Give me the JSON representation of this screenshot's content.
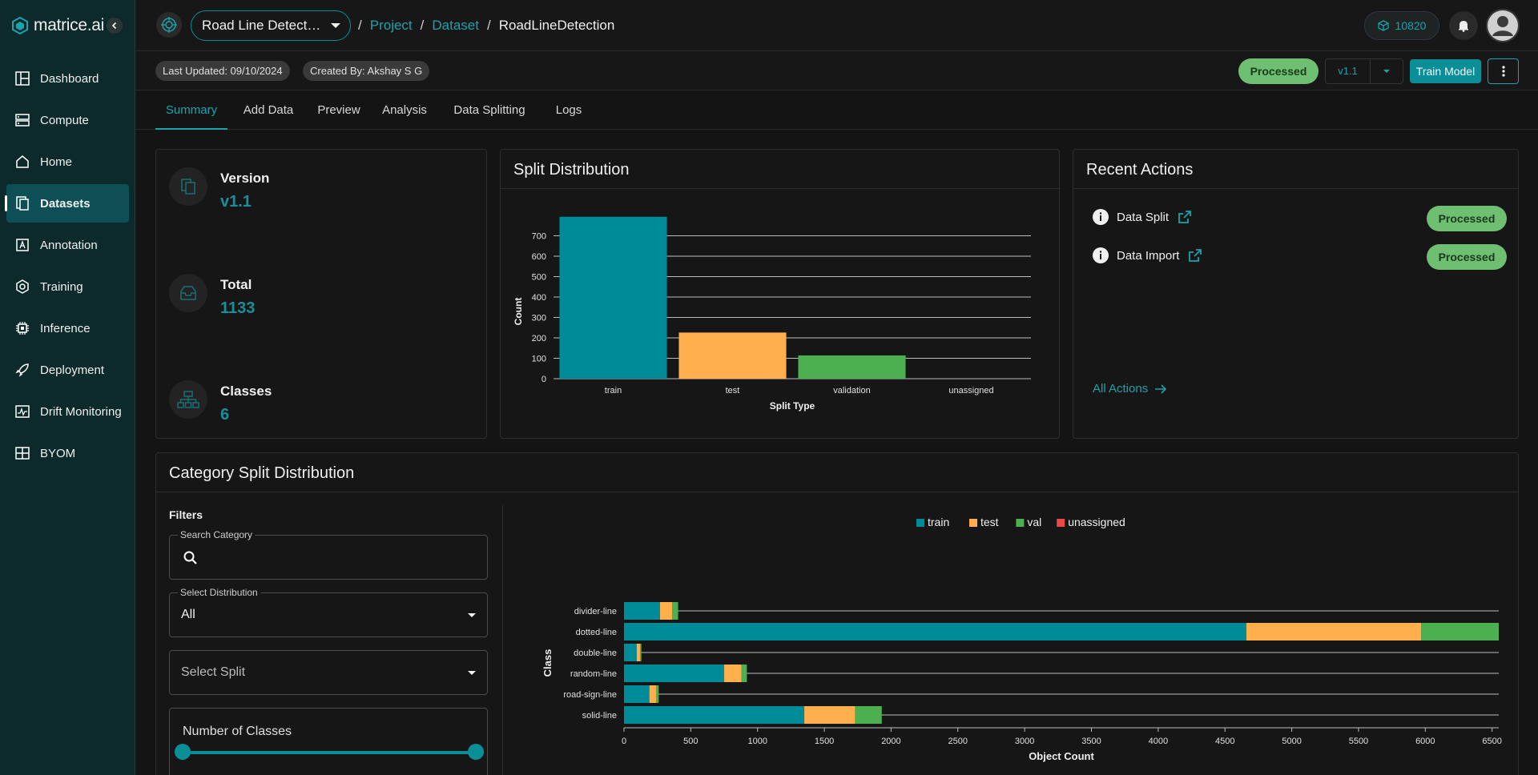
{
  "brand": {
    "name": "matrice.ai"
  },
  "sidebar": {
    "items": [
      {
        "label": "Dashboard",
        "icon": "dashboard-icon"
      },
      {
        "label": "Compute",
        "icon": "server-icon"
      },
      {
        "label": "Home",
        "icon": "home-icon"
      },
      {
        "label": "Datasets",
        "icon": "datasets-icon",
        "active": true
      },
      {
        "label": "Annotation",
        "icon": "annotation-icon"
      },
      {
        "label": "Training",
        "icon": "training-icon"
      },
      {
        "label": "Inference",
        "icon": "chip-icon"
      },
      {
        "label": "Deployment",
        "icon": "rocket-icon"
      },
      {
        "label": "Drift Monitoring",
        "icon": "drift-icon"
      },
      {
        "label": "BYOM",
        "icon": "byom-icon"
      }
    ]
  },
  "topbar": {
    "project_select": "Road Line Detect…",
    "breadcrumb": {
      "sep": "/",
      "project": "Project",
      "dataset": "Dataset",
      "current": "RoadLineDetection"
    },
    "credits": "10820"
  },
  "subbar": {
    "last_updated": "Last Updated: 09/10/2024",
    "created_by": "Created By: Akshay S G",
    "status": "Processed",
    "version": "v1.1",
    "train_button": "Train Model"
  },
  "tabs": [
    "Summary",
    "Add Data",
    "Preview",
    "Analysis",
    "Data Splitting",
    "Logs"
  ],
  "summary": {
    "version_label": "Version",
    "version_value": "v1.1",
    "total_label": "Total",
    "total_value": "1133",
    "classes_label": "Classes",
    "classes_value": "6"
  },
  "split_card": {
    "title": "Split Distribution"
  },
  "recent_actions": {
    "title": "Recent Actions",
    "items": [
      {
        "label": "Data Split",
        "status": "Processed"
      },
      {
        "label": "Data Import",
        "status": "Processed"
      }
    ],
    "all_actions": "All Actions"
  },
  "category_card": {
    "title": "Category Split Distribution",
    "filters_label": "Filters",
    "search_legend": "Search Category",
    "distribution_legend": "Select Distribution",
    "distribution_value": "All",
    "split_placeholder": "Select Split",
    "num_classes_label": "Number of Classes"
  },
  "colors": {
    "accent": "#0a8f99",
    "train": "#008b99",
    "test": "#ffb04c",
    "val": "#4caf50",
    "unassigned": "#e84a4a",
    "processed": "#6fbf73"
  },
  "chart_data": [
    {
      "type": "bar",
      "categories": [
        "train",
        "test",
        "validation",
        "unassigned"
      ],
      "values": [
        793,
        226,
        114,
        0
      ],
      "xlabel": "Split Type",
      "ylabel": "Count",
      "yticks": [
        0,
        100,
        200,
        300,
        400,
        500,
        600,
        700
      ],
      "ylim": [
        0,
        800
      ],
      "grid": true
    },
    {
      "type": "bar",
      "orientation": "horizontal",
      "stacked": true,
      "categories": [
        "divider-line",
        "dotted-line",
        "double-line",
        "random-line",
        "road-sign-line",
        "solid-line"
      ],
      "series": [
        {
          "name": "train",
          "values": [
            270,
            4660,
            95,
            750,
            190,
            1350
          ]
        },
        {
          "name": "test",
          "values": [
            90,
            1310,
            25,
            130,
            50,
            380
          ]
        },
        {
          "name": "val",
          "values": [
            45,
            580,
            10,
            40,
            20,
            200
          ]
        },
        {
          "name": "unassigned",
          "values": [
            0,
            0,
            0,
            0,
            0,
            0
          ]
        }
      ],
      "xlabel": "Object Count",
      "ylabel": "Class",
      "xticks": [
        0,
        500,
        1000,
        1500,
        2000,
        2500,
        3000,
        3500,
        4000,
        4500,
        5000,
        5500,
        6000,
        6500
      ],
      "xlim": [
        0,
        6550
      ],
      "legend": "top-center",
      "grid": true
    }
  ]
}
